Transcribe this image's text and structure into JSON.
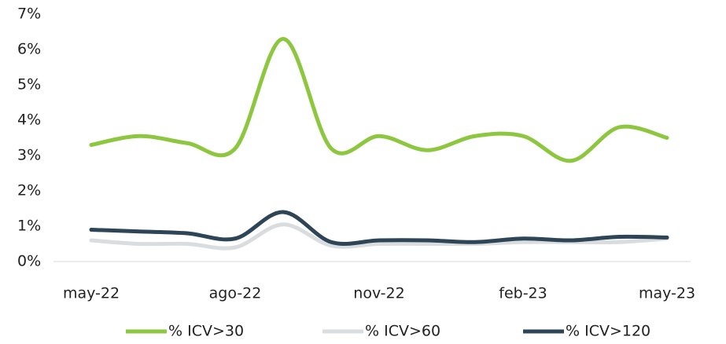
{
  "chart_data": {
    "type": "line",
    "categories": [
      "may-22",
      null,
      null,
      "ago-22",
      null,
      null,
      "nov-22",
      null,
      null,
      "feb-23",
      null,
      null,
      "may-23"
    ],
    "series": [
      {
        "name": "% ICV>30",
        "color": "#8dc63f",
        "values": [
          3.3,
          3.55,
          3.35,
          3.2,
          6.3,
          3.2,
          3.55,
          3.15,
          3.55,
          3.55,
          2.85,
          3.8,
          3.5
        ]
      },
      {
        "name": "% ICV>60",
        "color": "#d9dde0",
        "values": [
          0.6,
          0.5,
          0.5,
          0.4,
          1.05,
          0.45,
          0.5,
          0.5,
          0.5,
          0.55,
          0.55,
          0.55,
          0.65
        ]
      },
      {
        "name": "% ICV>120",
        "color": "#2e4457",
        "values": [
          0.9,
          0.85,
          0.8,
          0.65,
          1.4,
          0.55,
          0.6,
          0.6,
          0.55,
          0.65,
          0.6,
          0.7,
          0.68
        ]
      }
    ],
    "ylim": [
      0,
      7
    ],
    "yticks": [
      {
        "value": 0,
        "label": "0%"
      },
      {
        "value": 1,
        "label": "1%"
      },
      {
        "value": 2,
        "label": "2%"
      },
      {
        "value": 3,
        "label": "3%"
      },
      {
        "value": 4,
        "label": "4%"
      },
      {
        "value": 5,
        "label": "5%"
      },
      {
        "value": 6,
        "label": "6%"
      },
      {
        "value": 7,
        "label": "7%"
      }
    ],
    "legend": "bottom"
  }
}
